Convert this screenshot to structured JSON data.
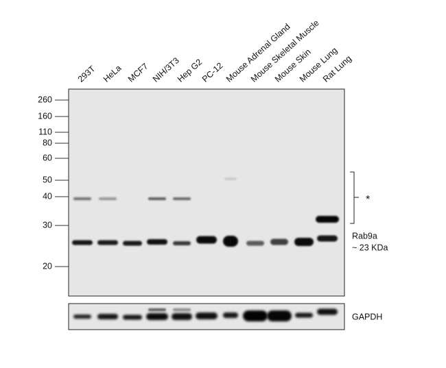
{
  "lanes": [
    "293T",
    "HeLa",
    "MCF7",
    "NIH/3T3",
    "Hep G2",
    "PC-12",
    "Mouse Adrenal Gland",
    "Mouse Skeletal Muscle",
    "Mouse Skin",
    "Mouse Lung",
    "Rat Lung"
  ],
  "markers": [
    260,
    160,
    110,
    80,
    60,
    50,
    40,
    30,
    20
  ],
  "annotations": {
    "band_marker": "*",
    "target": "Rab9a",
    "size": "~ 23 KDa"
  },
  "loading_control": "GAPDH"
}
